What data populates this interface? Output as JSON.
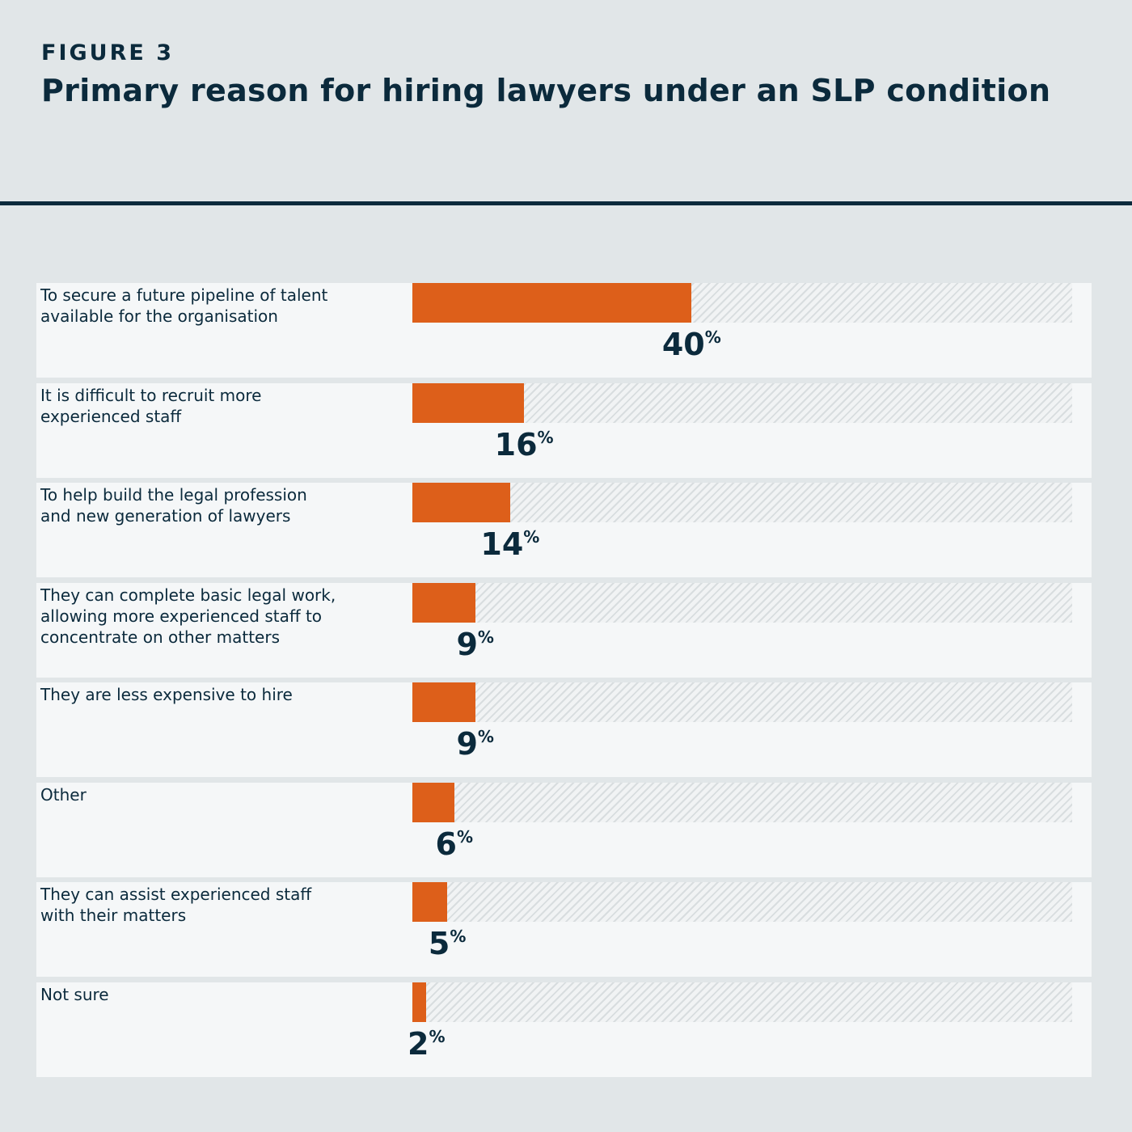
{
  "header": {
    "figure_label": "FIGURE 3",
    "title": "Primary reason for hiring lawyers under an SLP condition"
  },
  "colors": {
    "background": "#e1e6e8",
    "panel": "#f5f7f8",
    "bar": "#dd5f1a",
    "text": "#0b2a3c",
    "rule": "#0b2a3c"
  },
  "chart_data": {
    "type": "bar",
    "orientation": "horizontal",
    "title": "Primary reason for hiring lawyers under an SLP condition",
    "xlabel": "",
    "ylabel": "",
    "xlim": [
      0,
      100
    ],
    "unit": "%",
    "grid": false,
    "categories": [
      "To secure a future pipeline of talent\navailable for the organisation",
      "It is difficult to recruit more\nexperienced staff",
      "To help build the legal profession\nand new generation of lawyers",
      "They can complete basic legal work,\nallowing more experienced staff to\nconcentrate on other matters",
      "They are less expensive to hire",
      "Other",
      "They can assist experienced staff\nwith their matters",
      "Not sure"
    ],
    "values": [
      40,
      16,
      14,
      9,
      9,
      6,
      5,
      2
    ],
    "value_labels": [
      "40",
      "16",
      "14",
      "9",
      "9",
      "6",
      "5",
      "2"
    ]
  }
}
